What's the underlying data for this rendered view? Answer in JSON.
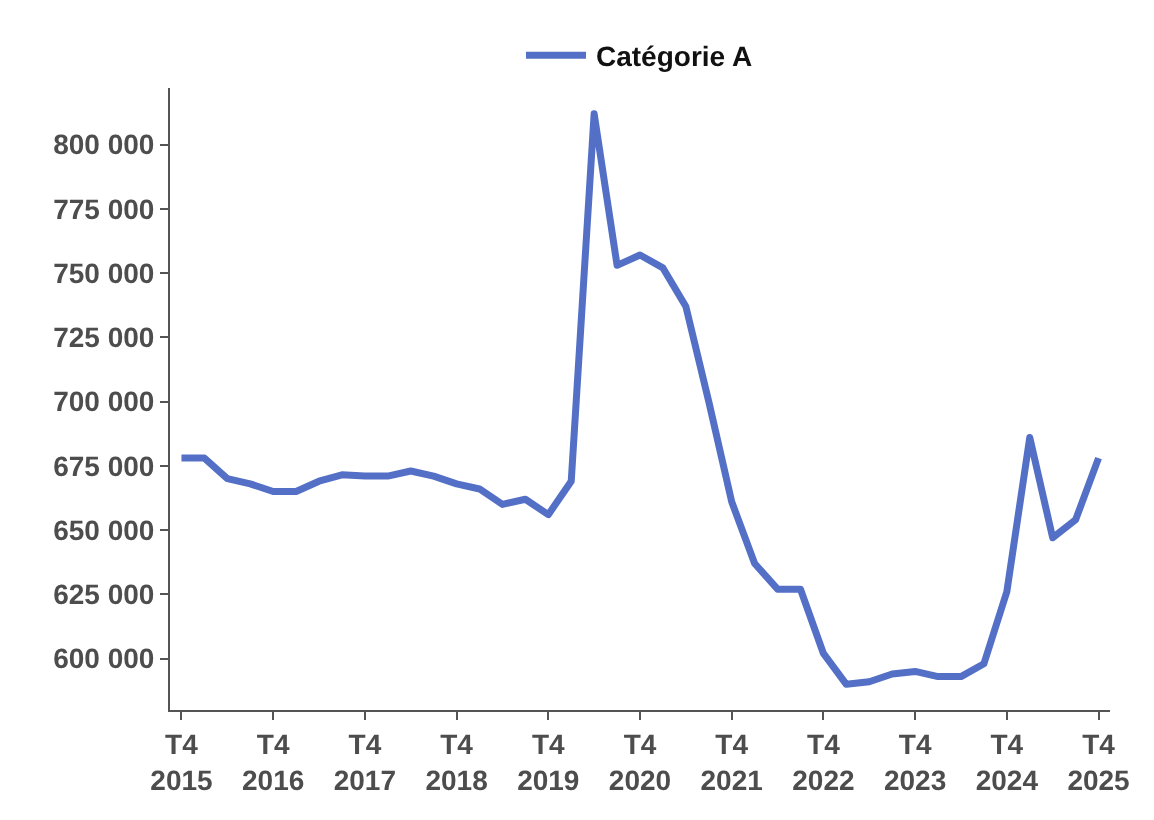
{
  "chart_data": {
    "type": "line",
    "categories": [
      "T4\n2015",
      null,
      null,
      null,
      "T4\n2016",
      null,
      null,
      null,
      "T4\n2017",
      null,
      null,
      null,
      "T4\n2018",
      null,
      null,
      null,
      "T4\n2019",
      null,
      null,
      null,
      "T4\n2020",
      null,
      null,
      null,
      "T4\n2021",
      null,
      null,
      null,
      "T4\n2022",
      null,
      null,
      null,
      "T4\n2023",
      null,
      null,
      null,
      "T4\n2024",
      null,
      null,
      null,
      "T4\n2025"
    ],
    "series": [
      {
        "name": "Catégorie A",
        "color": "#5470c6",
        "values": [
          678000,
          678000,
          670000,
          668000,
          665000,
          665000,
          669000,
          671500,
          671000,
          671000,
          673000,
          671000,
          668000,
          666000,
          660000,
          662000,
          656000,
          669000,
          812000,
          753000,
          757000,
          752000,
          737000,
          700000,
          661000,
          637000,
          627000,
          627000,
          602000,
          590000,
          591000,
          594000,
          595000,
          593000,
          593000,
          598000,
          626000,
          686000,
          647000,
          654000,
          678000
        ]
      }
    ],
    "ylim": [
      580000,
      822000
    ],
    "yticks": [
      {
        "value": 600000,
        "label": "600 000"
      },
      {
        "value": 625000,
        "label": "625 000"
      },
      {
        "value": 650000,
        "label": "650 000"
      },
      {
        "value": 675000,
        "label": "675 000"
      },
      {
        "value": 700000,
        "label": "700 000"
      },
      {
        "value": 725000,
        "label": "725 000"
      },
      {
        "value": 750000,
        "label": "750 000"
      },
      {
        "value": 775000,
        "label": "775 000"
      },
      {
        "value": 800000,
        "label": "800 000"
      }
    ],
    "legend": "top",
    "marker": "none",
    "line_style": "solid"
  }
}
